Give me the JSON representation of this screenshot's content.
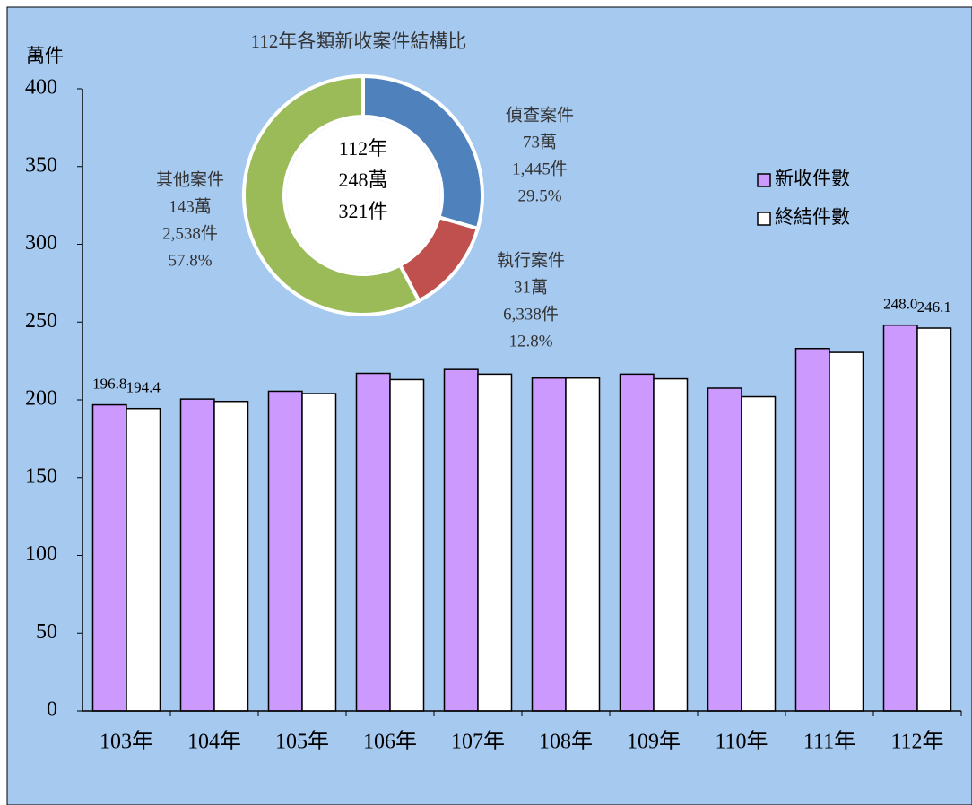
{
  "chart_data": [
    {
      "type": "bar",
      "y_label": "萬件",
      "categories": [
        "103年",
        "104年",
        "105年",
        "106年",
        "107年",
        "108年",
        "109年",
        "110年",
        "111年",
        "112年"
      ],
      "series": [
        {
          "name": "新收件數",
          "color": "#cc99ff",
          "values": [
            196.8,
            200.5,
            205.5,
            217,
            219.5,
            214,
            216.5,
            207.5,
            233,
            248.0
          ],
          "value_labels": [
            "196.8",
            null,
            null,
            null,
            null,
            null,
            null,
            null,
            null,
            "248.0"
          ]
        },
        {
          "name": "終結件數",
          "color": "#ffffff",
          "values": [
            194.4,
            199,
            204,
            213,
            216.5,
            214,
            213.5,
            202,
            230.5,
            246.1
          ],
          "value_labels": [
            "194.4",
            null,
            null,
            null,
            null,
            null,
            null,
            null,
            null,
            "246.1"
          ]
        }
      ],
      "ylim": [
        0,
        400
      ],
      "yticks": [
        0,
        50,
        100,
        150,
        200,
        250,
        300,
        350,
        400
      ],
      "legend": "right"
    },
    {
      "type": "pie",
      "title": "112年各類新收案件結構比",
      "donut": true,
      "center_labels": [
        "112年",
        "248萬",
        "321件"
      ],
      "categories": [
        "偵查案件",
        "執行案件",
        "其他案件"
      ],
      "values": [
        29.5,
        12.8,
        57.8
      ],
      "value_labels": [
        "29.5%",
        "12.8%",
        "57.8%"
      ],
      "amount_labels": [
        [
          "73萬",
          "1,445件"
        ],
        [
          "31萬",
          "6,338件"
        ],
        [
          "143萬",
          "2,538件"
        ]
      ],
      "colors": [
        "#4f81bd",
        "#c0504d",
        "#9bbb59"
      ]
    }
  ]
}
